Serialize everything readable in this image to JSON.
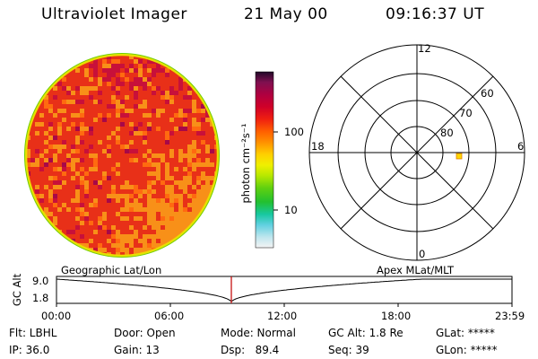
{
  "header": {
    "title": "Ultraviolet Imager",
    "date": "21 May 00",
    "time": "09:16:37 UT"
  },
  "colorbar": {
    "unit_label": "photon cm⁻²s⁻¹",
    "ticks": [
      "100",
      "10"
    ]
  },
  "polar": {
    "mlt_labels": [
      "12",
      "18",
      "6",
      "0"
    ],
    "lat_labels": [
      "60",
      "70",
      "80"
    ],
    "marker_color": "#ffd800"
  },
  "timeline": {
    "y_axis_label": "GC Alt",
    "y_ticks": [
      "9.0",
      "1.8"
    ],
    "left_caption": "Geographic Lat/Lon",
    "right_caption": "Apex MLat/MLT",
    "x_ticks": [
      "00:00",
      "06:00",
      "12:00",
      "18:00",
      "23:59"
    ],
    "marker_color": "#c00000"
  },
  "info": {
    "filter": "Flt: LBHL",
    "ip": "IP: 36.0",
    "door": "Door: Open",
    "gain": "Gain: 13",
    "mode": "Mode: Normal",
    "dsp": "Dsp:   89.4",
    "gc_alt": "GC Alt: 1.8 Re",
    "seq": "Seq: 39",
    "glat": "GLat: *****",
    "glon": "GLon: *****"
  }
}
